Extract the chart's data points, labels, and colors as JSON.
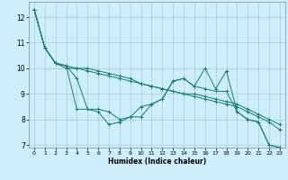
{
  "xlabel": "Humidex (Indice chaleur)",
  "bg_color": "#cceeff",
  "line_color": "#1a7a6e",
  "grid_color": "#aacccc",
  "xlim": [
    -0.5,
    23.5
  ],
  "ylim": [
    6.9,
    12.6
  ],
  "yticks": [
    7,
    8,
    9,
    10,
    11,
    12
  ],
  "xticks": [
    0,
    1,
    2,
    3,
    4,
    5,
    6,
    7,
    8,
    9,
    10,
    11,
    12,
    13,
    14,
    15,
    16,
    17,
    18,
    19,
    20,
    21,
    22,
    23
  ],
  "series": [
    [
      12.3,
      10.8,
      10.2,
      10.1,
      8.4,
      8.4,
      8.3,
      7.8,
      7.9,
      8.1,
      8.5,
      8.6,
      8.8,
      9.5,
      9.6,
      9.3,
      9.2,
      9.1,
      9.1,
      8.3,
      8.0,
      7.9,
      7.0,
      6.9
    ],
    [
      12.3,
      10.8,
      10.2,
      10.1,
      9.6,
      8.4,
      8.4,
      8.3,
      8.0,
      8.1,
      8.1,
      8.6,
      8.8,
      9.5,
      9.6,
      9.3,
      10.0,
      9.2,
      9.9,
      8.3,
      8.0,
      7.9,
      7.0,
      6.9
    ],
    [
      12.3,
      10.8,
      10.2,
      10.1,
      10.0,
      10.0,
      9.9,
      9.8,
      9.7,
      9.6,
      9.4,
      9.3,
      9.2,
      9.1,
      9.0,
      9.0,
      8.9,
      8.8,
      8.7,
      8.6,
      8.4,
      8.2,
      8.0,
      7.8
    ],
    [
      12.3,
      10.8,
      10.2,
      10.0,
      10.0,
      9.9,
      9.8,
      9.7,
      9.6,
      9.5,
      9.4,
      9.3,
      9.2,
      9.1,
      9.0,
      8.9,
      8.8,
      8.7,
      8.6,
      8.5,
      8.3,
      8.1,
      7.9,
      7.6
    ]
  ]
}
